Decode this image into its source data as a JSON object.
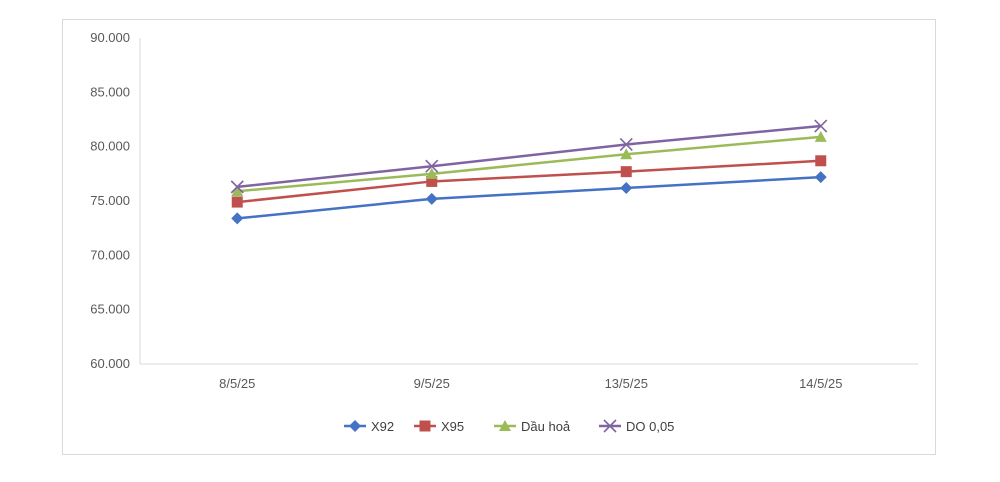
{
  "chart_data": {
    "type": "line",
    "title": "",
    "xlabel": "",
    "ylabel": "",
    "categories": [
      "8/5/25",
      "9/5/25",
      "13/5/25",
      "14/5/25"
    ],
    "y_tick_labels": [
      "60.000",
      "65.000",
      "70.000",
      "75.000",
      "80.000",
      "85.000",
      "90.000"
    ],
    "y_ticks": [
      60000,
      65000,
      70000,
      75000,
      80000,
      85000,
      90000
    ],
    "ylim": [
      60000,
      90000
    ],
    "grid": false,
    "legend_position": "bottom",
    "series": [
      {
        "name": "X92",
        "color": "#4472c4",
        "marker": "diamond",
        "values": [
          73400,
          75200,
          76200,
          77200
        ]
      },
      {
        "name": "X95",
        "color": "#c0504d",
        "marker": "square",
        "values": [
          74900,
          76800,
          77700,
          78700
        ]
      },
      {
        "name": "Dầu hoả",
        "color": "#9bbb59",
        "marker": "triangle",
        "values": [
          75900,
          77500,
          79300,
          80900
        ]
      },
      {
        "name": "DO 0,05",
        "color": "#8064a2",
        "marker": "x",
        "values": [
          76300,
          78200,
          80200,
          81900
        ]
      }
    ]
  }
}
